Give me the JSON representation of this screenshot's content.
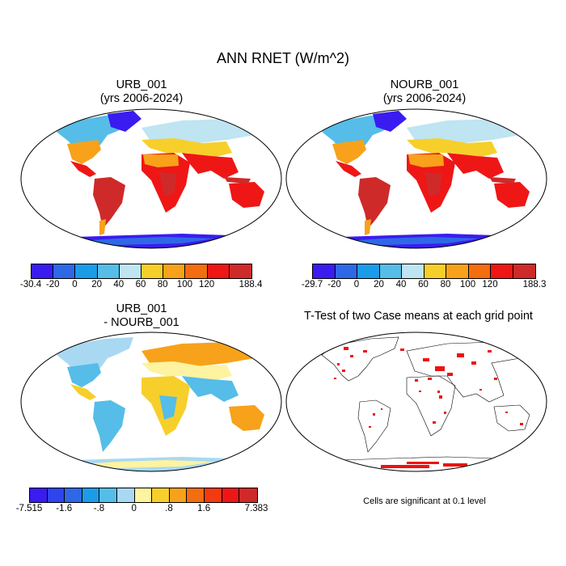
{
  "title": "ANN RNET (W/m^2)",
  "panels": {
    "urb": {
      "line1": "URB_001",
      "line2": "(yrs 2006-2024)"
    },
    "nourb": {
      "line1": "NOURB_001",
      "line2": "(yrs 2006-2024)"
    },
    "diff": {
      "line1": "URB_001",
      "line2": "- NOURB_001"
    },
    "ttest": {
      "title": "T-Test of two Case means at each grid point",
      "note": "Cells are significant at 0.1 level"
    }
  },
  "colorbars": {
    "urb": {
      "labels": [
        "-30.4",
        "-20",
        "0",
        "20",
        "40",
        "60",
        "80",
        "100",
        "120",
        "188.4"
      ],
      "colors": [
        "#3a1cf0",
        "#2f68e6",
        "#1b9ce8",
        "#55bde8",
        "#bfe4f2",
        "#f7cf2a",
        "#f7a21a",
        "#f46d0f",
        "#ef1616",
        "#cf2a2a"
      ]
    },
    "nourb": {
      "labels": [
        "-29.7",
        "-20",
        "0",
        "20",
        "40",
        "60",
        "80",
        "100",
        "120",
        "188.3"
      ],
      "colors": [
        "#3a1cf0",
        "#2f68e6",
        "#1b9ce8",
        "#55bde8",
        "#bfe4f2",
        "#f7cf2a",
        "#f7a21a",
        "#f46d0f",
        "#ef1616",
        "#cf2a2a"
      ]
    },
    "diff": {
      "labels": [
        "-7.515",
        "-1.6",
        "-.8",
        "0",
        ".8",
        "1.6",
        "7.383"
      ],
      "colors": [
        "#3a1cf0",
        "#2f44ec",
        "#2f68e6",
        "#1b9ce8",
        "#55bde8",
        "#a9d8f2",
        "#fdf3a0",
        "#f7cf2a",
        "#f7a21a",
        "#f46d0f",
        "#f23b10",
        "#ef1616",
        "#cf2a2a"
      ]
    }
  }
}
